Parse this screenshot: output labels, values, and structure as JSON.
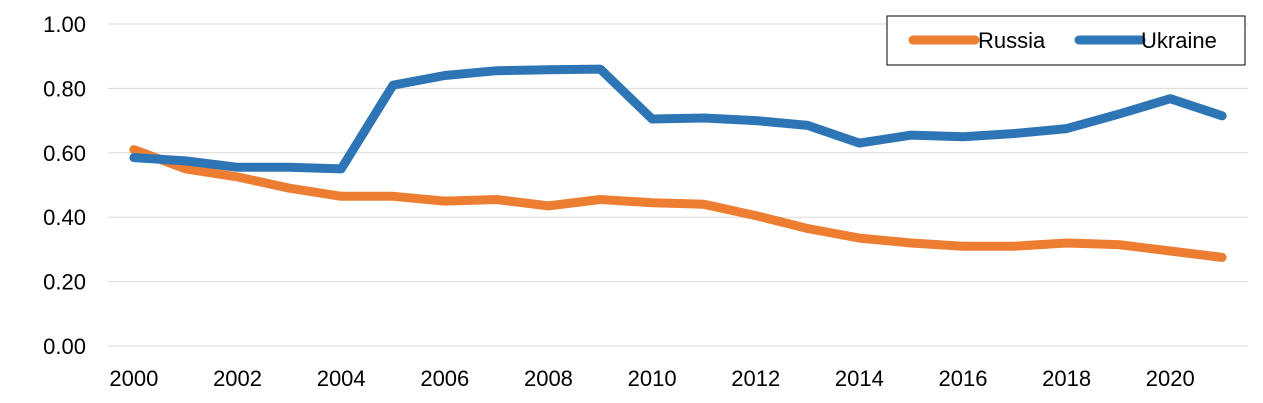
{
  "chart_data": {
    "type": "line",
    "title": "",
    "xlabel": "",
    "ylabel": "",
    "x": [
      2000,
      2001,
      2002,
      2003,
      2004,
      2005,
      2006,
      2007,
      2008,
      2009,
      2010,
      2011,
      2012,
      2013,
      2014,
      2015,
      2016,
      2017,
      2018,
      2019,
      2020,
      2021
    ],
    "xticks": [
      "2000",
      "2002",
      "2004",
      "2006",
      "2008",
      "2010",
      "2012",
      "2014",
      "2016",
      "2018",
      "2020"
    ],
    "yticks": [
      "0.00",
      "0.20",
      "0.40",
      "0.60",
      "0.80",
      "1.00"
    ],
    "ylim": [
      0,
      1
    ],
    "xlim": [
      2000,
      2021
    ],
    "grid": "horizontal",
    "legend_position": "top-right",
    "series": [
      {
        "name": "Russia",
        "color": "#ED7D31",
        "values": [
          0.61,
          0.55,
          0.525,
          0.49,
          0.465,
          0.465,
          0.45,
          0.455,
          0.435,
          0.455,
          0.445,
          0.44,
          0.405,
          0.365,
          0.335,
          0.32,
          0.31,
          0.31,
          0.32,
          0.315,
          0.295,
          0.275
        ]
      },
      {
        "name": "Ukraine",
        "color": "#2E75B6",
        "values": [
          0.585,
          0.575,
          0.555,
          0.555,
          0.55,
          0.81,
          0.84,
          0.855,
          0.858,
          0.86,
          0.705,
          0.708,
          0.7,
          0.685,
          0.63,
          0.655,
          0.65,
          0.66,
          0.675,
          0.72,
          0.768,
          0.715
        ]
      }
    ]
  }
}
